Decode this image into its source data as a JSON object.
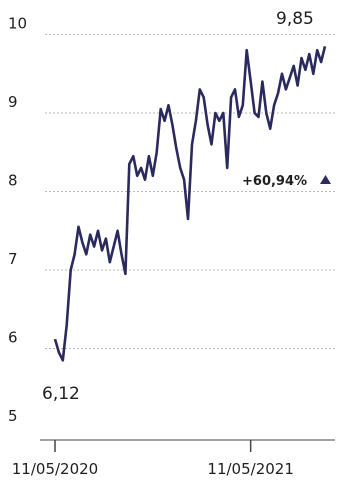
{
  "colors": {
    "line": "#2b2a5e",
    "grid": "#b9b9b9",
    "axis": "#444444",
    "text": "#1f1f1f",
    "arrow": "#2b2a5e"
  },
  "chart_data": {
    "type": "line",
    "title": "",
    "xlabel": "",
    "ylabel": "",
    "ylim": [
      5,
      10
    ],
    "yticks": [
      "5",
      "6",
      "7",
      "8",
      "9",
      "10"
    ],
    "xticks": [
      {
        "label": "11/05/2020",
        "t": 0.0
      },
      {
        "label": "11/05/2021",
        "t": 1.0
      }
    ],
    "grid": true,
    "start_label": "6,12",
    "end_label": "9,85",
    "change_label": "+60,94%",
    "change_direction": "up",
    "series": [
      {
        "t": [
          0.0,
          0.02,
          0.04,
          0.06,
          0.08,
          0.1,
          0.12,
          0.14,
          0.16,
          0.18,
          0.2,
          0.22,
          0.24,
          0.26,
          0.28,
          0.3,
          0.32,
          0.34,
          0.36,
          0.38,
          0.4,
          0.42,
          0.44,
          0.46,
          0.48,
          0.5,
          0.52,
          0.54,
          0.56,
          0.58,
          0.6,
          0.62,
          0.64,
          0.66,
          0.68,
          0.7,
          0.72,
          0.74,
          0.76,
          0.78,
          0.8,
          0.82,
          0.84,
          0.86,
          0.88,
          0.9,
          0.92,
          0.94,
          0.96,
          0.98,
          1.0,
          1.02,
          1.04,
          1.06,
          1.08,
          1.1,
          1.12,
          1.14,
          1.16,
          1.18,
          1.2,
          1.22,
          1.24,
          1.26,
          1.28,
          1.3,
          1.32,
          1.34,
          1.36,
          1.38
        ],
        "values": [
          6.12,
          5.95,
          5.85,
          6.3,
          7.0,
          7.2,
          7.55,
          7.35,
          7.2,
          7.45,
          7.3,
          7.5,
          7.25,
          7.4,
          7.1,
          7.3,
          7.5,
          7.2,
          6.95,
          8.35,
          8.45,
          8.2,
          8.3,
          8.15,
          8.45,
          8.2,
          8.5,
          9.05,
          8.9,
          9.1,
          8.85,
          8.55,
          8.3,
          8.15,
          7.65,
          8.6,
          8.9,
          9.3,
          9.2,
          8.85,
          8.6,
          9.0,
          8.9,
          9.0,
          8.3,
          9.2,
          9.3,
          8.95,
          9.1,
          9.8,
          9.4,
          9.0,
          8.95,
          9.4,
          9.0,
          8.8,
          9.1,
          9.25,
          9.5,
          9.3,
          9.45,
          9.6,
          9.35,
          9.7,
          9.55,
          9.75,
          9.5,
          9.8,
          9.65,
          9.85
        ]
      }
    ]
  }
}
